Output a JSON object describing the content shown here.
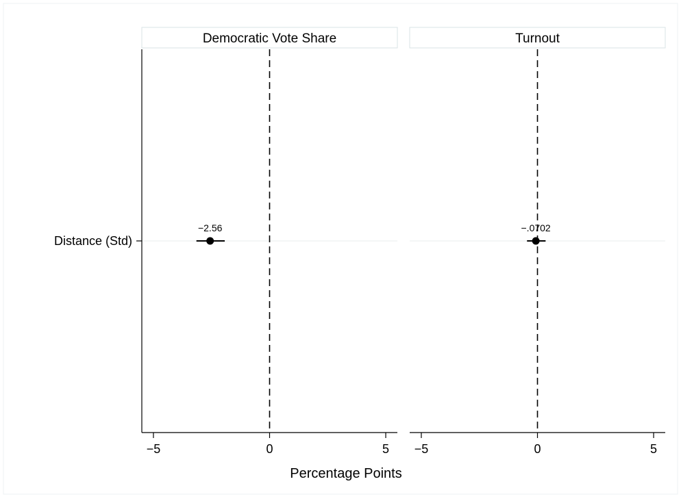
{
  "chart_data": {
    "type": "coefficient-plot",
    "xlabel": "Percentage Points",
    "xlim": [
      -5.5,
      5.5
    ],
    "xticks": [
      -5,
      0,
      5
    ],
    "xtick_labels": [
      "−5",
      "0",
      "5"
    ],
    "reference_line": 0,
    "grid": true,
    "row_labels": [
      "Distance (Std)"
    ],
    "panels": [
      {
        "title": "Democratic Vote Share",
        "estimate": -2.56,
        "estimate_label": "−2.56",
        "ci": [
          -3.15,
          -1.93
        ]
      },
      {
        "title": "Turnout",
        "estimate": -0.0702,
        "estimate_label": "−.0702",
        "ci": [
          -0.45,
          0.35
        ]
      }
    ]
  }
}
